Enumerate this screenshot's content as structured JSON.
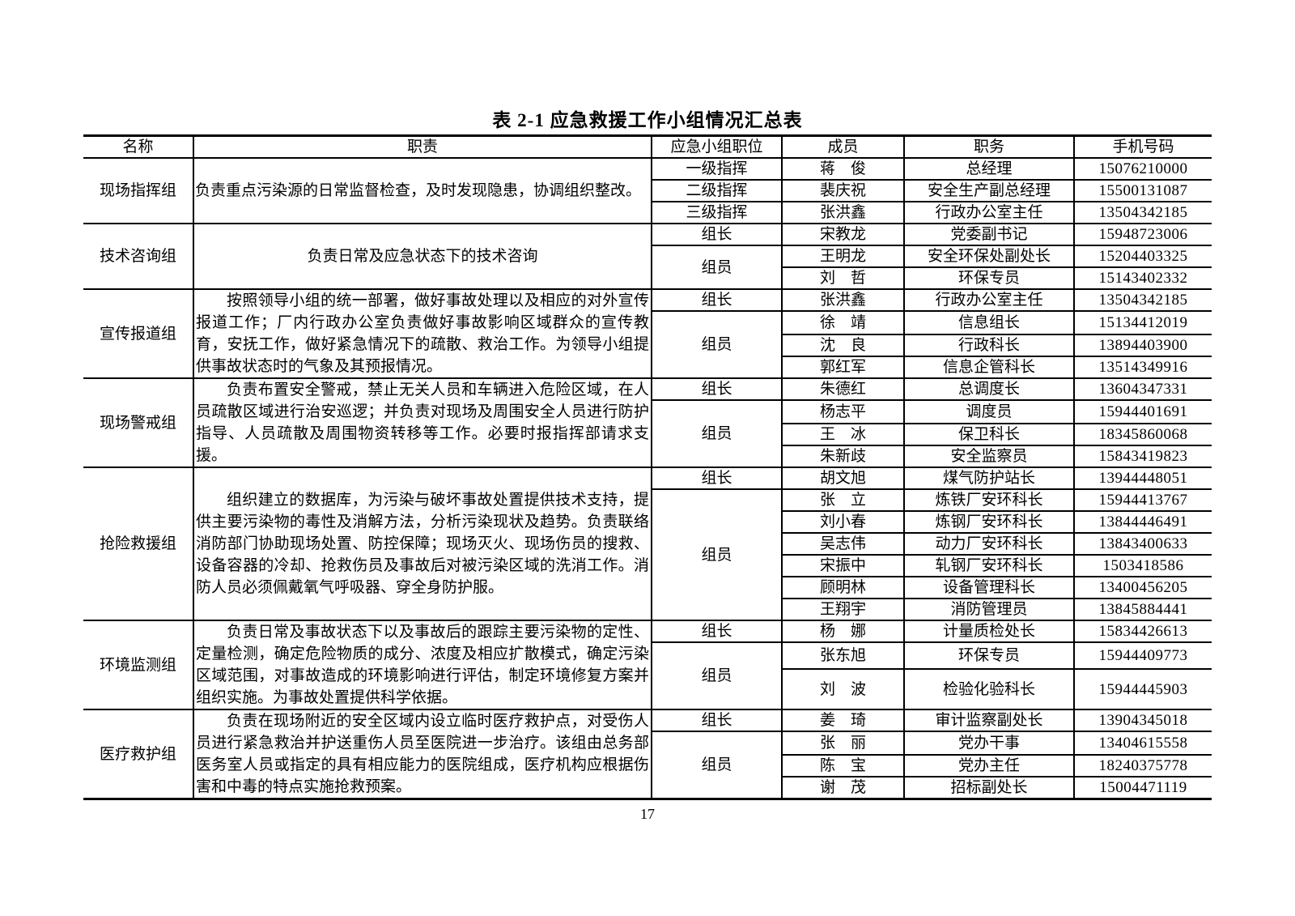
{
  "title": "表 2-1  应急救援工作小组情况汇总表",
  "page_number": "17",
  "table": {
    "columns": [
      "名称",
      "职责",
      "应急小组职位",
      "成员",
      "职务",
      "手机号码"
    ],
    "groups": [
      {
        "name": "现场指挥组",
        "duty": "负责重点污染源的日常监督检查，及时发现隐患，协调组织整改。",
        "duty_style": "flush",
        "blocks": [
          {
            "position": "一级指挥",
            "members": [
              {
                "name": "蒋　俊",
                "title": "总经理",
                "phone": "15076210000"
              }
            ]
          },
          {
            "position": "二级指挥",
            "members": [
              {
                "name": "裴庆祝",
                "title": "安全生产副总经理",
                "phone": "15500131087"
              }
            ]
          },
          {
            "position": "三级指挥",
            "members": [
              {
                "name": "张洪鑫",
                "title": "行政办公室主任",
                "phone": "13504342185"
              }
            ]
          }
        ]
      },
      {
        "name": "技术咨询组",
        "duty": "负责日常及应急状态下的技术咨询",
        "duty_style": "center",
        "blocks": [
          {
            "position": "组长",
            "members": [
              {
                "name": "宋教龙",
                "title": "党委副书记",
                "phone": "15948723006"
              }
            ]
          },
          {
            "position": "组员",
            "members": [
              {
                "name": "王明龙",
                "title": "安全环保处副处长",
                "phone": "15204403325"
              },
              {
                "name": "刘　哲",
                "title": "环保专员",
                "phone": "15143402332"
              }
            ]
          }
        ]
      },
      {
        "name": "宣传报道组",
        "duty": "按照领导小组的统一部署，做好事故处理以及相应的对外宣传报道工作；厂内行政办公室负责做好事故影响区域群众的宣传教育，安抚工作，做好紧急情况下的疏散、救治工作。为领导小组提供事故状态时的气象及其预报情况。",
        "duty_style": "indent",
        "blocks": [
          {
            "position": "组长",
            "members": [
              {
                "name": "张洪鑫",
                "title": "行政办公室主任",
                "phone": "13504342185"
              }
            ]
          },
          {
            "position": "组员",
            "members": [
              {
                "name": "徐　靖",
                "title": "信息组长",
                "phone": "15134412019"
              },
              {
                "name": "沈　良",
                "title": "行政科长",
                "phone": "13894403900"
              },
              {
                "name": "郭红军",
                "title": "信息企管科长",
                "phone": "13514349916"
              }
            ]
          }
        ]
      },
      {
        "name": "现场警戒组",
        "duty": "负责布置安全警戒，禁止无关人员和车辆进入危险区域，在人员疏散区域进行治安巡逻；并负责对现场及周围安全人员进行防护指导、人员疏散及周围物资转移等工作。必要时报指挥部请求支援。",
        "duty_style": "indent",
        "blocks": [
          {
            "position": "组长",
            "members": [
              {
                "name": "朱德红",
                "title": "总调度长",
                "phone": "13604347331"
              }
            ]
          },
          {
            "position": "组员",
            "members": [
              {
                "name": "杨志平",
                "title": "调度员",
                "phone": "15944401691"
              },
              {
                "name": "王　冰",
                "title": "保卫科长",
                "phone": "18345860068"
              },
              {
                "name": "朱新歧",
                "title": "安全监察员",
                "phone": "15843419823"
              }
            ]
          }
        ]
      },
      {
        "name": "抢险救援组",
        "duty": "组织建立的数据库，为污染与破坏事故处置提供技术支持，提供主要污染物的毒性及消解方法，分析污染现状及趋势。负责联络消防部门协助现场处置、防控保障；现场灭火、现场伤员的搜救、设备容器的冷却、抢救伤员及事故后对被污染区域的洗消工作。消防人员必须佩戴氧气呼吸器、穿全身防护服。",
        "duty_style": "indent",
        "blocks": [
          {
            "position": "组长",
            "members": [
              {
                "name": "胡文旭",
                "title": "煤气防护站长",
                "phone": "13944448051"
              }
            ]
          },
          {
            "position": "组员",
            "members": [
              {
                "name": "张　立",
                "title": "炼铁厂安环科长",
                "phone": "15944413767"
              },
              {
                "name": "刘小春",
                "title": "炼钢厂安环科长",
                "phone": "13844446491"
              },
              {
                "name": "吴志伟",
                "title": "动力厂安环科长",
                "phone": "13843400633"
              },
              {
                "name": "宋振中",
                "title": "轧钢厂安环科长",
                "phone": "1503418586"
              },
              {
                "name": "顾明林",
                "title": "设备管理科长",
                "phone": "13400456205"
              },
              {
                "name": "王翔宇",
                "title": "消防管理员",
                "phone": "13845884441"
              }
            ]
          }
        ]
      },
      {
        "name": "环境监测组",
        "duty": "负责日常及事故状态下以及事故后的跟踪主要污染物的定性、定量检测，确定危险物质的成分、浓度及相应扩散模式，确定污染区域范围，对事故造成的环境影响进行评估，制定环境修复方案并组织实施。为事故处置提供科学依据。",
        "duty_style": "indent",
        "blocks": [
          {
            "position": "组长",
            "members": [
              {
                "name": "杨　娜",
                "title": "计量质检处长",
                "phone": "15834426613"
              }
            ]
          },
          {
            "position": "组员",
            "members": [
              {
                "name": "张东旭",
                "title": "环保专员",
                "phone": "15944409773"
              },
              {
                "name": "刘　波",
                "title": "检验化验科长",
                "phone": "15944445903",
                "tall": true
              }
            ]
          }
        ]
      },
      {
        "name": "医疗救护组",
        "duty": "负责在现场附近的安全区域内设立临时医疗救护点，对受伤人员进行紧急救治并护送重伤人员至医院进一步治疗。该组由总务部医务室人员或指定的具有相应能力的医院组成，医疗机构应根据伤害和中毒的特点实施抢救预案。",
        "duty_style": "indent",
        "blocks": [
          {
            "position": "组长",
            "members": [
              {
                "name": "姜　琦",
                "title": "审计监察副处长",
                "phone": "13904345018"
              }
            ]
          },
          {
            "position": "组员",
            "members": [
              {
                "name": "张　丽",
                "title": "党办干事",
                "phone": "13404615558"
              },
              {
                "name": "陈　宝",
                "title": "党办主任",
                "phone": "18240375778"
              },
              {
                "name": "谢　茂",
                "title": "招标副处长",
                "phone": "15004471119"
              }
            ]
          }
        ]
      }
    ]
  }
}
